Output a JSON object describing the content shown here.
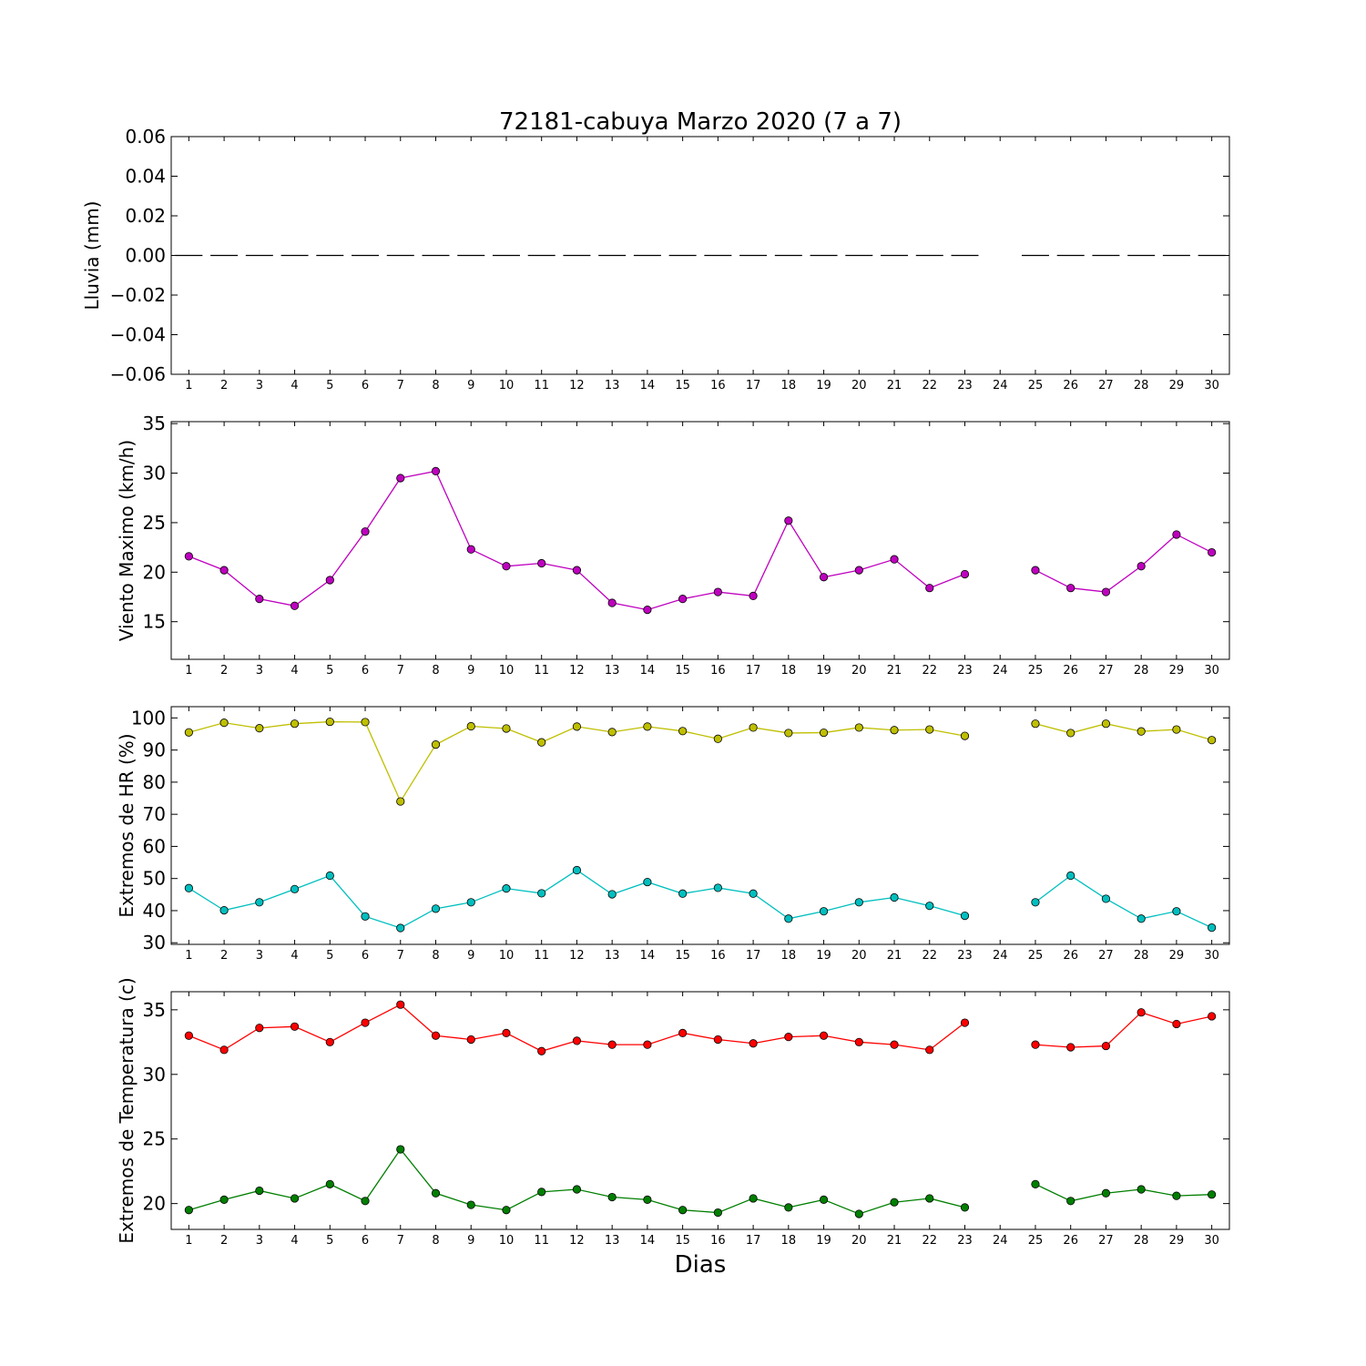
{
  "figure": {
    "title": "72181-cabuya Marzo 2020  (7 a 7)",
    "xlabel": "Dias"
  },
  "chart_data": [
    {
      "type": "line",
      "ylabel": "Lluvia (mm)",
      "ylim": [
        -0.06,
        0.06
      ],
      "yticks": [
        -0.06,
        -0.04,
        -0.02,
        0.0,
        0.02,
        0.04,
        0.06
      ],
      "ytick_labels": [
        "−0.06",
        "−0.04",
        "−0.02",
        "0.00",
        "0.02",
        "0.04",
        "0.06"
      ],
      "x": [
        1,
        2,
        3,
        4,
        5,
        6,
        7,
        8,
        9,
        10,
        11,
        12,
        13,
        14,
        15,
        16,
        17,
        18,
        19,
        20,
        21,
        22,
        23,
        24,
        25,
        26,
        27,
        28,
        29,
        30
      ],
      "xlim": [
        0.5,
        30.5
      ],
      "series": [
        {
          "style": "bars",
          "color": "#000000",
          "values": [
            0,
            0,
            0,
            0,
            0,
            0,
            0,
            0,
            0,
            0,
            0,
            0,
            0,
            0,
            0,
            0,
            0,
            0,
            0,
            0,
            0,
            0,
            0,
            null,
            0,
            0,
            0,
            0,
            0,
            0
          ]
        }
      ]
    },
    {
      "type": "line",
      "ylabel": "Viento Maximo (km/h)",
      "ylim": [
        11.2,
        35.2
      ],
      "yticks": [
        15,
        20,
        25,
        30,
        35
      ],
      "ytick_labels": [
        "15",
        "20",
        "25",
        "30",
        "35"
      ],
      "x": [
        1,
        2,
        3,
        4,
        5,
        6,
        7,
        8,
        9,
        10,
        11,
        12,
        13,
        14,
        15,
        16,
        17,
        18,
        19,
        20,
        21,
        22,
        23,
        24,
        25,
        26,
        27,
        28,
        29,
        30
      ],
      "xlim": [
        0.5,
        30.5
      ],
      "series": [
        {
          "color": "#bf00bf",
          "values": [
            21.6,
            20.2,
            17.3,
            16.6,
            19.2,
            24.1,
            29.5,
            30.2,
            22.3,
            20.6,
            20.9,
            20.2,
            16.9,
            16.2,
            17.3,
            18.0,
            17.6,
            25.2,
            19.5,
            20.2,
            21.3,
            18.4,
            19.8,
            null,
            20.2,
            18.4,
            18.0,
            20.6,
            23.8,
            22.0
          ]
        }
      ]
    },
    {
      "type": "line",
      "ylabel": "Extremos de HR (%)",
      "ylim": [
        29.5,
        103.5
      ],
      "yticks": [
        30,
        40,
        50,
        60,
        70,
        80,
        90,
        100
      ],
      "ytick_labels": [
        "30",
        "40",
        "50",
        "60",
        "70",
        "80",
        "90",
        "100"
      ],
      "x": [
        1,
        2,
        3,
        4,
        5,
        6,
        7,
        8,
        9,
        10,
        11,
        12,
        13,
        14,
        15,
        16,
        17,
        18,
        19,
        20,
        21,
        22,
        23,
        24,
        25,
        26,
        27,
        28,
        29,
        30
      ],
      "xlim": [
        0.5,
        30.5
      ],
      "series": [
        {
          "color": "#bfbf00",
          "values": [
            95.5,
            98.5,
            96.8,
            98.2,
            98.8,
            98.7,
            74.0,
            91.7,
            97.4,
            96.7,
            92.4,
            97.3,
            95.6,
            97.3,
            95.9,
            93.5,
            97.0,
            95.3,
            95.4,
            97.0,
            96.2,
            96.4,
            94.4,
            null,
            98.2,
            95.3,
            98.2,
            95.8,
            96.4,
            93.1
          ]
        },
        {
          "color": "#00bfbf",
          "values": [
            47.0,
            40.1,
            42.6,
            46.7,
            50.9,
            38.2,
            34.6,
            40.6,
            42.6,
            46.9,
            45.4,
            52.6,
            45.1,
            48.9,
            45.3,
            47.1,
            45.3,
            37.5,
            39.8,
            42.6,
            44.1,
            41.5,
            38.4,
            null,
            42.6,
            50.9,
            43.7,
            37.5,
            39.8,
            34.7
          ]
        }
      ]
    },
    {
      "type": "line",
      "ylabel": "Extremos de Temperatura (c)",
      "ylim": [
        18.0,
        36.4
      ],
      "yticks": [
        20,
        25,
        30,
        35
      ],
      "ytick_labels": [
        "20",
        "25",
        "30",
        "35"
      ],
      "x": [
        1,
        2,
        3,
        4,
        5,
        6,
        7,
        8,
        9,
        10,
        11,
        12,
        13,
        14,
        15,
        16,
        17,
        18,
        19,
        20,
        21,
        22,
        23,
        24,
        25,
        26,
        27,
        28,
        29,
        30
      ],
      "xlim": [
        0.5,
        30.5
      ],
      "series": [
        {
          "color": "#ff0000",
          "values": [
            33.0,
            31.9,
            33.6,
            33.7,
            32.5,
            34.0,
            35.4,
            33.0,
            32.7,
            33.2,
            31.8,
            32.6,
            32.3,
            32.3,
            33.2,
            32.7,
            32.4,
            32.9,
            33.0,
            32.5,
            32.3,
            31.9,
            34.0,
            null,
            32.3,
            32.1,
            32.2,
            34.8,
            33.9,
            34.5
          ]
        },
        {
          "color": "#007f00",
          "values": [
            19.5,
            20.3,
            21.0,
            20.4,
            21.5,
            20.2,
            24.2,
            20.8,
            19.9,
            19.5,
            20.9,
            21.1,
            20.5,
            20.3,
            19.5,
            19.3,
            20.4,
            19.7,
            20.3,
            19.2,
            20.1,
            20.4,
            19.7,
            null,
            21.5,
            20.2,
            20.8,
            21.1,
            20.6,
            20.7
          ]
        }
      ]
    }
  ]
}
